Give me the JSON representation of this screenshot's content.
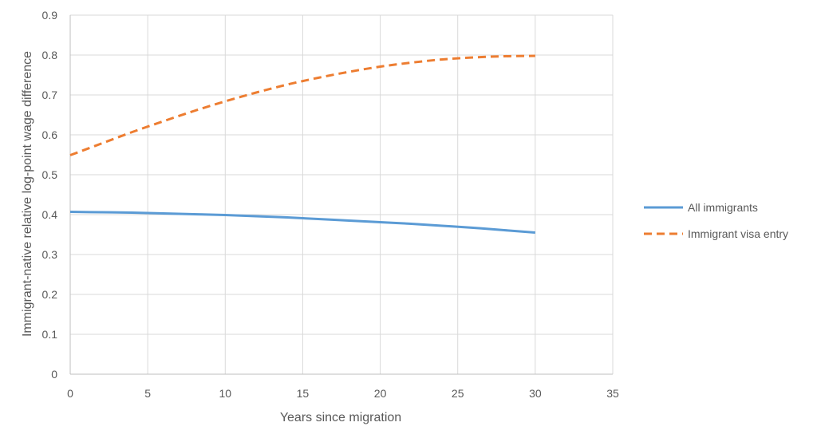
{
  "chart_data": {
    "type": "line",
    "title": "",
    "xlabel": "Years since migration",
    "ylabel": "Immigrant-native relative log-point wage difference",
    "xlim": [
      0,
      35
    ],
    "ylim": [
      0,
      0.9
    ],
    "x_ticks": [
      "0",
      "5",
      "10",
      "15",
      "20",
      "25",
      "30",
      "35"
    ],
    "y_ticks": [
      "0",
      "0.1",
      "0.2",
      "0.3",
      "0.4",
      "0.5",
      "0.6",
      "0.7",
      "0.8",
      "0.9"
    ],
    "grid": true,
    "legend_position": "right",
    "series": [
      {
        "name": "All immigrants",
        "color": "#5b9bd5",
        "dash": "solid",
        "x": [
          0,
          2,
          4,
          6,
          8,
          10,
          12,
          14,
          16,
          18,
          20,
          22,
          24,
          26,
          28,
          30
        ],
        "y": [
          0.407,
          0.406,
          0.405,
          0.403,
          0.401,
          0.399,
          0.396,
          0.393,
          0.389,
          0.385,
          0.381,
          0.377,
          0.372,
          0.367,
          0.361,
          0.355
        ]
      },
      {
        "name": "Immigrant visa entry",
        "color": "#ed7d31",
        "dash": "dashed",
        "x": [
          0,
          2,
          4,
          6,
          8,
          10,
          12,
          14,
          16,
          18,
          20,
          22,
          24,
          26,
          28,
          30
        ],
        "y": [
          0.549,
          0.578,
          0.607,
          0.634,
          0.66,
          0.684,
          0.706,
          0.726,
          0.743,
          0.758,
          0.771,
          0.781,
          0.789,
          0.794,
          0.797,
          0.798
        ]
      }
    ]
  }
}
